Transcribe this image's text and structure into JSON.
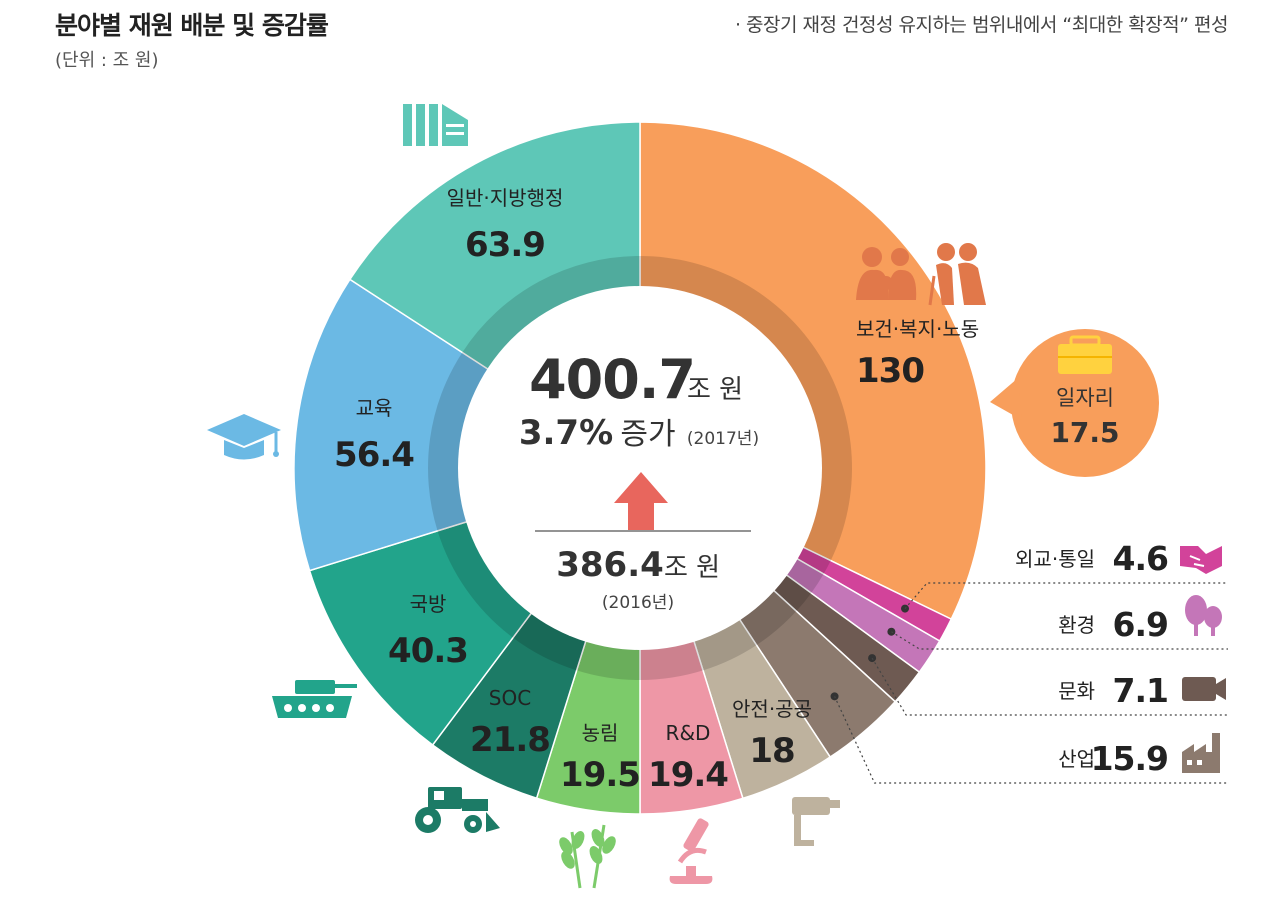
{
  "header": {
    "title": "분야별 재원 배분 및 증감률",
    "unit": "(단위 : 조 원)",
    "subtitle": "· 중장기 재정 건정성 유지하는 범위내에서 “최대한 확장적” 편성"
  },
  "center": {
    "total_value": "400.7",
    "total_unit": "조 원",
    "growth": "3.7%",
    "growth_label": "증가",
    "growth_year": "(2017년)",
    "prev_value": "386.4",
    "prev_unit": "조 원",
    "prev_year": "(2016년)"
  },
  "bubble": {
    "name": "일자리",
    "value": "17.5"
  },
  "chart_data": {
    "type": "donut",
    "title": "분야별 재원 배분 및 증감률",
    "unit": "조 원",
    "series": [
      {
        "name": "보건·복지·노동",
        "value": 130,
        "label": "130",
        "color": "#F89E5B",
        "icon": "elderly-family-icon"
      },
      {
        "name": "외교·통일",
        "value": 4.6,
        "label": "4.6",
        "color": "#D2439A",
        "icon": "handshake-icon"
      },
      {
        "name": "환경",
        "value": 6.9,
        "label": "6.9",
        "color": "#C476B8",
        "icon": "tree-icon"
      },
      {
        "name": "문화",
        "value": 7.1,
        "label": "7.1",
        "color": "#6E5A52",
        "icon": "video-camera-icon"
      },
      {
        "name": "산업",
        "value": 15.9,
        "label": "15.9",
        "color": "#8C7A6E",
        "icon": "factory-icon"
      },
      {
        "name": "안전·공공",
        "value": 18,
        "label": "18",
        "color": "#BEB29E",
        "icon": "cctv-icon"
      },
      {
        "name": "R&D",
        "value": 19.4,
        "label": "19.4",
        "color": "#EE97A6",
        "icon": "microscope-icon"
      },
      {
        "name": "농림",
        "value": 19.5,
        "label": "19.5",
        "color": "#7CCB6A",
        "icon": "wheat-icon"
      },
      {
        "name": "SOC",
        "value": 21.8,
        "label": "21.8",
        "color": "#1C7B66",
        "icon": "tractor-icon"
      },
      {
        "name": "국방",
        "value": 40.3,
        "label": "40.3",
        "color": "#22A48B",
        "icon": "tank-icon"
      },
      {
        "name": "교육",
        "value": 56.4,
        "label": "56.4",
        "color": "#6BB9E4",
        "icon": "graduation-cap-icon"
      },
      {
        "name": "일반·지방행정",
        "value": 63.9,
        "label": "63.9",
        "color": "#5EC7B7",
        "icon": "building-icon"
      }
    ]
  }
}
